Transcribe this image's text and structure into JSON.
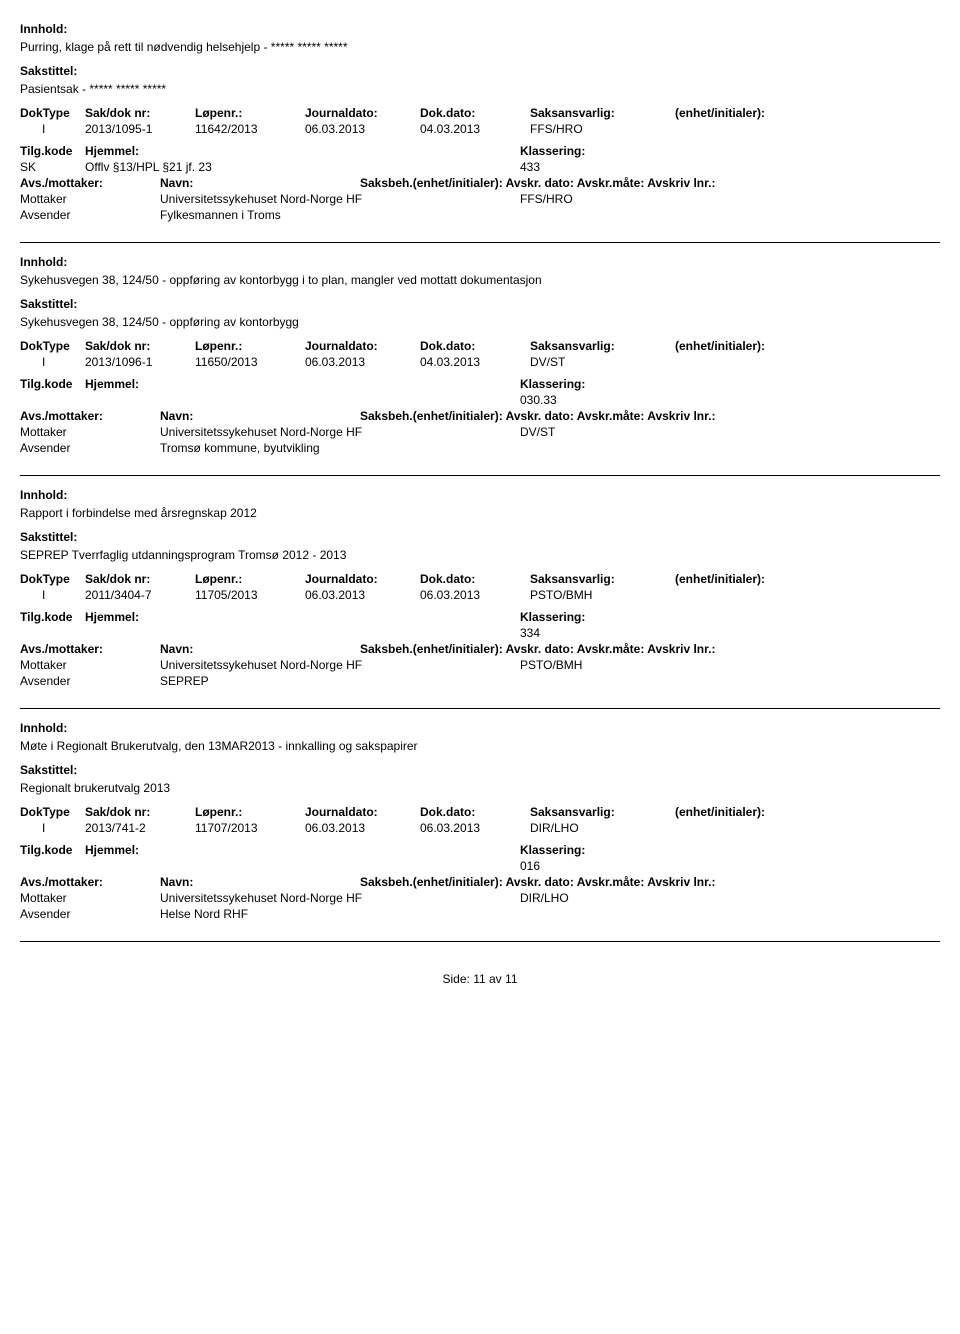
{
  "labels": {
    "innhold": "Innhold:",
    "sakstittel": "Sakstittel:",
    "doktype": "DokType",
    "saknr": "Sak/dok nr:",
    "lopenr": "Løpenr.:",
    "journaldato": "Journaldato:",
    "dokdato": "Dok.dato:",
    "saksansvarlig": "Saksansvarlig:",
    "enhet": "(enhet/initialer):",
    "tilgkode": "Tilg.kode",
    "hjemmel": "Hjemmel:",
    "klassering": "Klassering:",
    "avs_mottaker": "Avs./mottaker:",
    "navn": "Navn:",
    "saksbeh": "Saksbeh.(enhet/initialer):",
    "avskr_dato": "Avskr. dato:",
    "avskr_mate": "Avskr.måte:",
    "avskriv_lnr": "Avskriv lnr.:",
    "side": "Side:"
  },
  "records": [
    {
      "innhold": "Purring, klage på rett til nødvendig helsehjelp - ***** ***** *****",
      "sakstittel": "Pasientsak - ***** ***** *****",
      "doktype": "I",
      "saknr": "2013/1095-1",
      "lopenr": "11642/2013",
      "journaldato": "06.03.2013",
      "dokdato": "04.03.2013",
      "saksansvarlig": "FFS/HRO",
      "tilgkode": "SK",
      "hjemmel": "Offlv §13/HPL §21 jf. 23",
      "klassering": "433",
      "show_avs_header_full": false,
      "parties": [
        {
          "role": "Mottaker",
          "name": "Universitetssykehuset Nord-Norge HF",
          "code": "FFS/HRO"
        },
        {
          "role": "Avsender",
          "name": "Fylkesmannen i Troms",
          "code": ""
        }
      ]
    },
    {
      "innhold": "Sykehusvegen 38, 124/50 - oppføring av kontorbygg i to plan, mangler ved mottatt dokumentasjon",
      "sakstittel": "Sykehusvegen 38, 124/50 - oppføring av kontorbygg",
      "doktype": "I",
      "saknr": "2013/1096-1",
      "lopenr": "11650/2013",
      "journaldato": "06.03.2013",
      "dokdato": "04.03.2013",
      "saksansvarlig": "DV/ST",
      "tilgkode": "",
      "hjemmel": "",
      "klassering": "030.33",
      "show_avs_header_full": false,
      "parties": [
        {
          "role": "Mottaker",
          "name": "Universitetssykehuset Nord-Norge HF",
          "code": "DV/ST"
        },
        {
          "role": "Avsender",
          "name": "Tromsø kommune, byutvikling",
          "code": ""
        }
      ]
    },
    {
      "innhold": "Rapport i forbindelse med årsregnskap 2012",
      "sakstittel": "SEPREP Tverrfaglig utdanningsprogram Tromsø 2012 - 2013",
      "doktype": "I",
      "saknr": "2011/3404-7",
      "lopenr": "11705/2013",
      "journaldato": "06.03.2013",
      "dokdato": "06.03.2013",
      "saksansvarlig": "PSTO/BMH",
      "tilgkode": "",
      "hjemmel": "",
      "klassering": "334",
      "show_avs_header_full": true,
      "parties": [
        {
          "role": "Mottaker",
          "name": "Universitetssykehuset Nord-Norge HF",
          "code": "PSTO/BMH"
        },
        {
          "role": "Avsender",
          "name": "SEPREP",
          "code": ""
        }
      ]
    },
    {
      "innhold": "Møte i Regionalt Brukerutvalg, den 13MAR2013 - innkalling og sakspapirer",
      "sakstittel": "Regionalt brukerutvalg 2013",
      "doktype": "I",
      "saknr": "2013/741-2",
      "lopenr": "11707/2013",
      "journaldato": "06.03.2013",
      "dokdato": "06.03.2013",
      "saksansvarlig": "DIR/LHO",
      "tilgkode": "",
      "hjemmel": "",
      "klassering": "016",
      "show_avs_header_full": true,
      "parties": [
        {
          "role": "Mottaker",
          "name": "Universitetssykehuset Nord-Norge HF",
          "code": "DIR/LHO"
        },
        {
          "role": "Avsender",
          "name": "Helse Nord RHF",
          "code": ""
        }
      ]
    }
  ],
  "footer": {
    "current": "11",
    "sep": "av",
    "total": "11"
  }
}
